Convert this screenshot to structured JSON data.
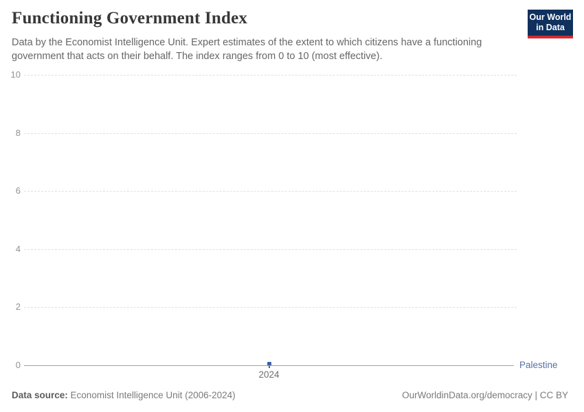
{
  "header": {
    "title": "Functioning Government Index",
    "subtitle": "Data by the Economist Intelligence Unit. Expert estimates of the extent to which citizens have a functioning government that acts on their behalf. The index ranges from 0 to 10 (most effective).",
    "logo": {
      "line1": "Our World",
      "line2": "in Data",
      "bg_color": "#10315e",
      "accent_color": "#d42b2f",
      "text_color": "#ffffff"
    }
  },
  "chart_data": {
    "type": "scatter",
    "title": "Functioning Government Index",
    "xlabel": "",
    "ylabel": "",
    "ylim": [
      0,
      10
    ],
    "y_ticks": [
      0,
      2,
      4,
      6,
      8,
      10
    ],
    "x_ticks": [
      "2024"
    ],
    "grid": "horizontal-dashed",
    "legend_position": "end-of-line-label",
    "series": [
      {
        "name": "Palestine",
        "color": "#3d5fa2",
        "label_color": "#5470a8",
        "points": [
          {
            "x": 2024,
            "y": 0
          }
        ]
      }
    ]
  },
  "footer": {
    "source_label": "Data source:",
    "source_value": "Economist Intelligence Unit (2006-2024)",
    "credit": "OurWorldinData.org/democracy | CC BY"
  }
}
